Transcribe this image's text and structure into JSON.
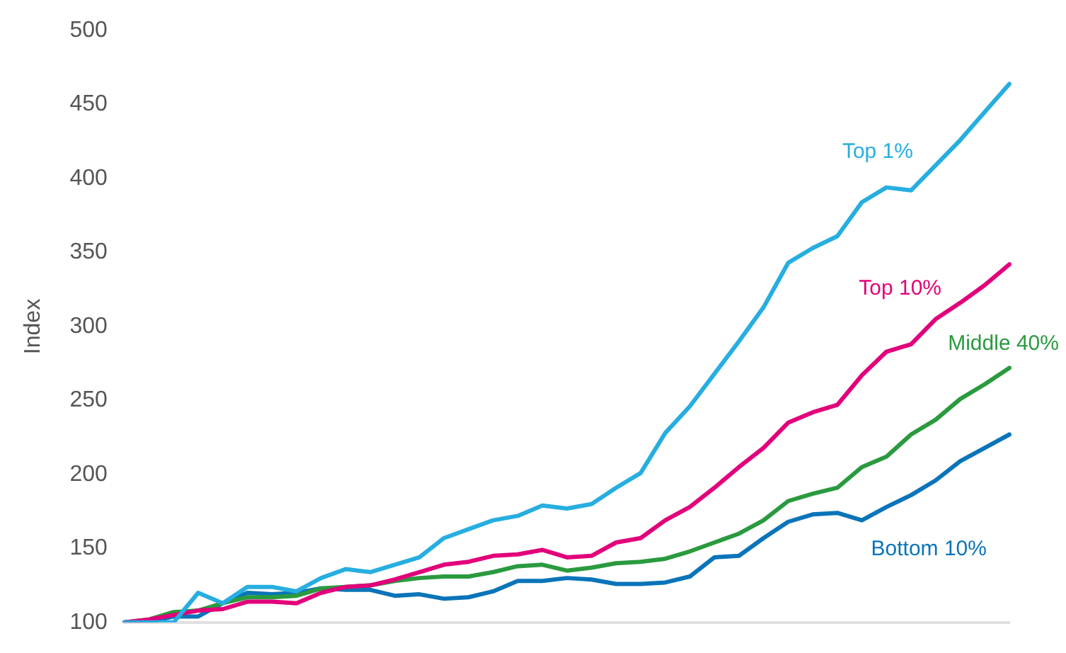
{
  "chart_data": {
    "type": "line",
    "ylabel": "Index",
    "categories": [
      null,
      null,
      null,
      null,
      null,
      null,
      null,
      null,
      null,
      null,
      null,
      null,
      null,
      null,
      null,
      null,
      null,
      null,
      null,
      null,
      null,
      null,
      null,
      null,
      null,
      null,
      null,
      null,
      null,
      null,
      null,
      null,
      null,
      null,
      null,
      null,
      null
    ],
    "ylim": [
      100,
      500
    ],
    "yticks": [
      100,
      150,
      200,
      250,
      300,
      350,
      400,
      450,
      500
    ],
    "grid": false,
    "legend": false,
    "marker": "none",
    "line_style": "solid",
    "series": [
      {
        "name": "Top 1%",
        "color": "#27aee0",
        "values": [
          100,
          100,
          100,
          120,
          113,
          124,
          124,
          121,
          130,
          136,
          134,
          139,
          144,
          157,
          163,
          169,
          172,
          179,
          177,
          180,
          191,
          201,
          228,
          246,
          268,
          290,
          313,
          343,
          353,
          361,
          384,
          394,
          392,
          409,
          426,
          445,
          464
        ]
      },
      {
        "name": "Top 10%",
        "color": "#e2007a",
        "values": [
          100,
          102,
          105,
          108,
          109,
          114,
          114,
          113,
          120,
          124,
          125,
          129,
          134,
          139,
          141,
          145,
          146,
          149,
          144,
          145,
          154,
          157,
          169,
          178,
          191,
          205,
          218,
          235,
          242,
          247,
          267,
          283,
          288,
          305,
          316,
          328,
          342
        ]
      },
      {
        "name": "Middle 40%",
        "color": "#2a9a3f",
        "values": [
          100,
          102,
          107,
          108,
          113,
          117,
          117,
          118,
          123,
          124,
          125,
          128,
          130,
          131,
          131,
          134,
          138,
          139,
          135,
          137,
          140,
          141,
          143,
          148,
          154,
          160,
          169,
          182,
          187,
          191,
          205,
          212,
          227,
          237,
          251,
          261,
          272
        ]
      },
      {
        "name": "Bottom 10%",
        "color": "#0a74b9",
        "values": [
          100,
          100,
          104,
          104,
          113,
          120,
          119,
          120,
          123,
          122,
          122,
          118,
          119,
          116,
          117,
          121,
          128,
          128,
          130,
          129,
          126,
          126,
          127,
          131,
          144,
          145,
          157,
          168,
          173,
          174,
          169,
          178,
          186,
          196,
          209,
          218,
          227
        ]
      }
    ]
  }
}
